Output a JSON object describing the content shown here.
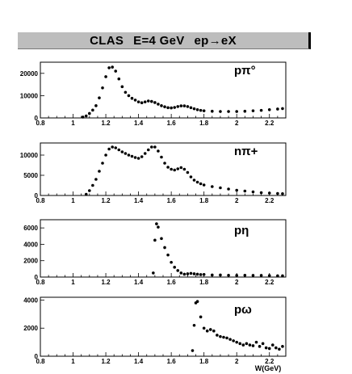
{
  "header": {
    "experiment": "CLAS",
    "energy": "E=4 GeV",
    "reaction": "ep→eX"
  },
  "chart_data": [
    {
      "type": "scatter",
      "label": "pπ°",
      "xlim": [
        0.8,
        2.3
      ],
      "ylim": [
        0,
        25000
      ],
      "xticks": [
        0.8,
        1,
        1.2,
        1.4,
        1.6,
        1.8,
        2,
        2.2
      ],
      "yticks": [
        0,
        10000,
        20000
      ],
      "points": [
        [
          1.06,
          400
        ],
        [
          1.08,
          900
        ],
        [
          1.1,
          2000
        ],
        [
          1.12,
          3500
        ],
        [
          1.14,
          5500
        ],
        [
          1.16,
          9000
        ],
        [
          1.18,
          13500
        ],
        [
          1.2,
          18500
        ],
        [
          1.22,
          22500
        ],
        [
          1.24,
          22800
        ],
        [
          1.26,
          21000
        ],
        [
          1.28,
          17500
        ],
        [
          1.3,
          14000
        ],
        [
          1.32,
          11500
        ],
        [
          1.34,
          10000
        ],
        [
          1.36,
          8800
        ],
        [
          1.38,
          8000
        ],
        [
          1.4,
          7200
        ],
        [
          1.42,
          6800
        ],
        [
          1.44,
          7200
        ],
        [
          1.46,
          7600
        ],
        [
          1.48,
          7400
        ],
        [
          1.5,
          6900
        ],
        [
          1.52,
          6200
        ],
        [
          1.54,
          5500
        ],
        [
          1.56,
          5000
        ],
        [
          1.58,
          4600
        ],
        [
          1.6,
          4500
        ],
        [
          1.62,
          4700
        ],
        [
          1.64,
          5100
        ],
        [
          1.66,
          5400
        ],
        [
          1.68,
          5400
        ],
        [
          1.7,
          5100
        ],
        [
          1.72,
          4600
        ],
        [
          1.74,
          4100
        ],
        [
          1.76,
          3700
        ],
        [
          1.78,
          3400
        ],
        [
          1.8,
          3200
        ],
        [
          1.85,
          3000
        ],
        [
          1.9,
          2900
        ],
        [
          1.95,
          2900
        ],
        [
          2.0,
          2900
        ],
        [
          2.05,
          3000
        ],
        [
          2.1,
          3200
        ],
        [
          2.15,
          3400
        ],
        [
          2.2,
          3700
        ],
        [
          2.25,
          4000
        ],
        [
          2.28,
          4200
        ]
      ]
    },
    {
      "type": "scatter",
      "label": "nπ+",
      "xlim": [
        0.8,
        2.3
      ],
      "ylim": [
        0,
        13000
      ],
      "xticks": [
        0.8,
        1,
        1.2,
        1.4,
        1.6,
        1.8,
        2,
        2.2
      ],
      "yticks": [
        0,
        5000,
        10000
      ],
      "points": [
        [
          1.08,
          300
        ],
        [
          1.1,
          1200
        ],
        [
          1.12,
          2500
        ],
        [
          1.14,
          4000
        ],
        [
          1.16,
          6000
        ],
        [
          1.18,
          8000
        ],
        [
          1.2,
          10000
        ],
        [
          1.22,
          11500
        ],
        [
          1.24,
          12000
        ],
        [
          1.26,
          11800
        ],
        [
          1.28,
          11300
        ],
        [
          1.3,
          10800
        ],
        [
          1.32,
          10400
        ],
        [
          1.34,
          10000
        ],
        [
          1.36,
          9700
        ],
        [
          1.38,
          9400
        ],
        [
          1.4,
          9200
        ],
        [
          1.42,
          9600
        ],
        [
          1.44,
          10400
        ],
        [
          1.46,
          11300
        ],
        [
          1.48,
          12000
        ],
        [
          1.5,
          12000
        ],
        [
          1.52,
          11000
        ],
        [
          1.54,
          9500
        ],
        [
          1.56,
          8000
        ],
        [
          1.58,
          7000
        ],
        [
          1.6,
          6500
        ],
        [
          1.62,
          6300
        ],
        [
          1.64,
          6600
        ],
        [
          1.66,
          6900
        ],
        [
          1.68,
          6500
        ],
        [
          1.7,
          5700
        ],
        [
          1.72,
          4600
        ],
        [
          1.74,
          3800
        ],
        [
          1.76,
          3300
        ],
        [
          1.78,
          2900
        ],
        [
          1.8,
          2600
        ],
        [
          1.85,
          2200
        ],
        [
          1.9,
          1900
        ],
        [
          1.95,
          1600
        ],
        [
          2.0,
          1300
        ],
        [
          2.05,
          1100
        ],
        [
          2.1,
          900
        ],
        [
          2.15,
          700
        ],
        [
          2.2,
          600
        ],
        [
          2.25,
          500
        ],
        [
          2.28,
          450
        ]
      ]
    },
    {
      "type": "scatter",
      "label": "pη",
      "xlim": [
        0.8,
        2.3
      ],
      "ylim": [
        0,
        7000
      ],
      "xticks": [
        0.8,
        1,
        1.2,
        1.4,
        1.6,
        1.8,
        2,
        2.2
      ],
      "yticks": [
        0,
        2000,
        4000,
        6000
      ],
      "points": [
        [
          1.49,
          500
        ],
        [
          1.5,
          4500
        ],
        [
          1.51,
          6500
        ],
        [
          1.52,
          6100
        ],
        [
          1.54,
          4700
        ],
        [
          1.56,
          3600
        ],
        [
          1.58,
          2700
        ],
        [
          1.6,
          1800
        ],
        [
          1.62,
          1200
        ],
        [
          1.64,
          800
        ],
        [
          1.66,
          500
        ],
        [
          1.68,
          350
        ],
        [
          1.7,
          400
        ],
        [
          1.72,
          450
        ],
        [
          1.74,
          400
        ],
        [
          1.76,
          350
        ],
        [
          1.78,
          300
        ],
        [
          1.8,
          320
        ],
        [
          1.85,
          250
        ],
        [
          1.9,
          250
        ],
        [
          1.95,
          220
        ],
        [
          2.0,
          200
        ],
        [
          2.05,
          220
        ],
        [
          2.1,
          200
        ],
        [
          2.15,
          200
        ],
        [
          2.2,
          180
        ],
        [
          2.25,
          150
        ],
        [
          2.28,
          150
        ]
      ]
    },
    {
      "type": "scatter",
      "label": "pω",
      "xlim": [
        0.8,
        2.3
      ],
      "ylim": [
        0,
        4200
      ],
      "xticks": [
        0.8,
        1,
        1.2,
        1.4,
        1.6,
        1.8,
        2,
        2.2
      ],
      "yticks": [
        0,
        2000,
        4000
      ],
      "xlabel": "W(GeV)",
      "points": [
        [
          1.73,
          400
        ],
        [
          1.74,
          2200
        ],
        [
          1.75,
          3800
        ],
        [
          1.76,
          3900
        ],
        [
          1.78,
          2800
        ],
        [
          1.8,
          2000
        ],
        [
          1.82,
          1800
        ],
        [
          1.84,
          1900
        ],
        [
          1.86,
          1800
        ],
        [
          1.88,
          1500
        ],
        [
          1.9,
          1400
        ],
        [
          1.92,
          1350
        ],
        [
          1.94,
          1300
        ],
        [
          1.96,
          1200
        ],
        [
          1.98,
          1100
        ],
        [
          2.0,
          1000
        ],
        [
          2.02,
          900
        ],
        [
          2.04,
          800
        ],
        [
          2.06,
          900
        ],
        [
          2.08,
          800
        ],
        [
          2.1,
          750
        ],
        [
          2.12,
          1000
        ],
        [
          2.14,
          700
        ],
        [
          2.16,
          900
        ],
        [
          2.18,
          600
        ],
        [
          2.2,
          550
        ],
        [
          2.22,
          800
        ],
        [
          2.24,
          600
        ],
        [
          2.26,
          500
        ],
        [
          2.28,
          700
        ]
      ]
    }
  ]
}
